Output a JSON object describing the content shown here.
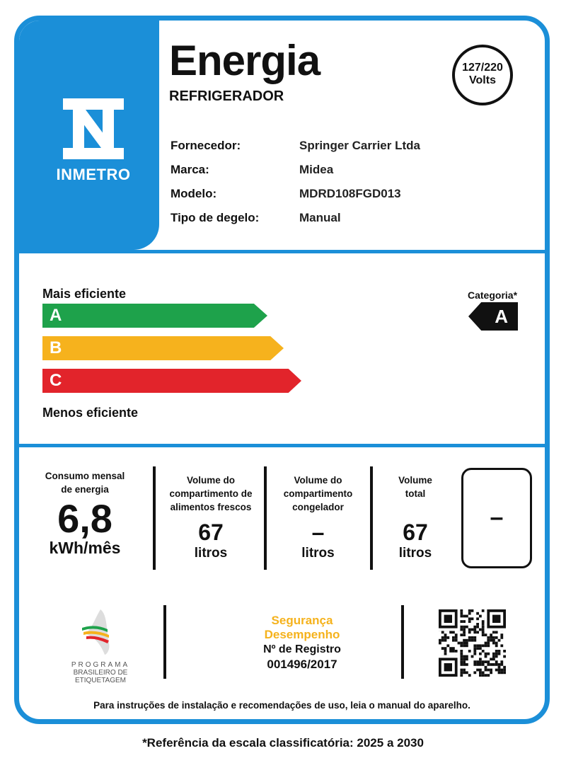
{
  "header": {
    "title": "Energia",
    "subtitle": "REFRIGERADOR",
    "voltage_top": "127/220",
    "voltage_bottom": "Volts"
  },
  "brand_logo": {
    "text": "INMETRO"
  },
  "info": [
    {
      "label": "Fornecedor:",
      "value": "Springer Carrier Ltda"
    },
    {
      "label": "Marca:",
      "value": "Midea"
    },
    {
      "label": "Modelo:",
      "value": "MDRD108FGD013"
    },
    {
      "label": "Tipo de degelo:",
      "value": "Manual"
    }
  ],
  "efficiency": {
    "top_label": "Mais eficiente",
    "bottom_label": "Menos eficiente",
    "classes": [
      {
        "letter": "A",
        "color": "#1ea24b"
      },
      {
        "letter": "B",
        "color": "#f6b21d"
      },
      {
        "letter": "C",
        "color": "#e2242b"
      }
    ],
    "category_label": "Categoria*",
    "category": "A"
  },
  "metrics": {
    "consumption": {
      "label_1": "Consumo mensal",
      "label_2": "de energia",
      "value": "6,8",
      "unit": "kWh/mês"
    },
    "fresh": {
      "label_1": "Volume do",
      "label_2": "compartimento de",
      "label_3": "alimentos frescos",
      "value": "67",
      "unit": "litros"
    },
    "freezer": {
      "label_1": "Volume do",
      "label_2": "compartimento",
      "label_3": "congelador",
      "value": "–",
      "unit": "litros"
    },
    "total": {
      "label_1": "Volume",
      "label_2": "total",
      "value": "67",
      "unit": "litros"
    },
    "box_value": "–"
  },
  "program_logo": {
    "line1": "PROGRAMA",
    "line2": "BRASILEIRO DE",
    "line3": "ETIQUETAGEM"
  },
  "registration": {
    "line1": "Segurança",
    "line2": "Desempenho",
    "label": "Nº de Registro",
    "number": "001496/2017",
    "accent": "#f5b21c"
  },
  "footer_note": "Para instruções de instalação e recomendações de uso, leia o manual do aparelho.",
  "reference": "*Referência da escala classificatória: 2025 a 2030"
}
